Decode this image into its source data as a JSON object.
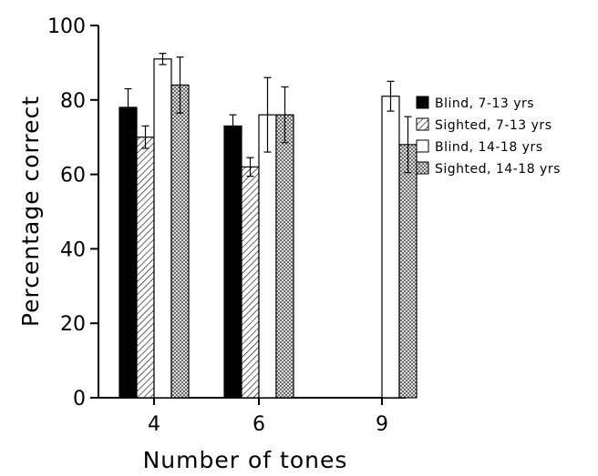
{
  "chart_data": {
    "type": "bar",
    "title": "",
    "xlabel": "Number of tones",
    "ylabel": "Percentage correct",
    "ylim": [
      0,
      100
    ],
    "yticks": [
      0,
      20,
      40,
      60,
      80,
      100
    ],
    "categories": [
      "4",
      "6",
      "9"
    ],
    "legend_position": "right",
    "grid": false,
    "series": [
      {
        "name": "Blind, 7-13 yrs",
        "pattern": "solid-black",
        "values": [
          78,
          73,
          null
        ],
        "errors": [
          5,
          3,
          null
        ]
      },
      {
        "name": "Sighted, 7-13 yrs",
        "pattern": "diagonal-hatch",
        "values": [
          70,
          62,
          null
        ],
        "errors": [
          3,
          2.5,
          null
        ]
      },
      {
        "name": "Blind, 14-18 yrs",
        "pattern": "white",
        "values": [
          91,
          76,
          81
        ],
        "errors": [
          1.5,
          10,
          4
        ]
      },
      {
        "name": "Sighted, 14-18 yrs",
        "pattern": "crosshatch",
        "values": [
          84,
          76,
          68
        ],
        "errors": [
          7.5,
          7.5,
          7.5
        ]
      }
    ]
  }
}
